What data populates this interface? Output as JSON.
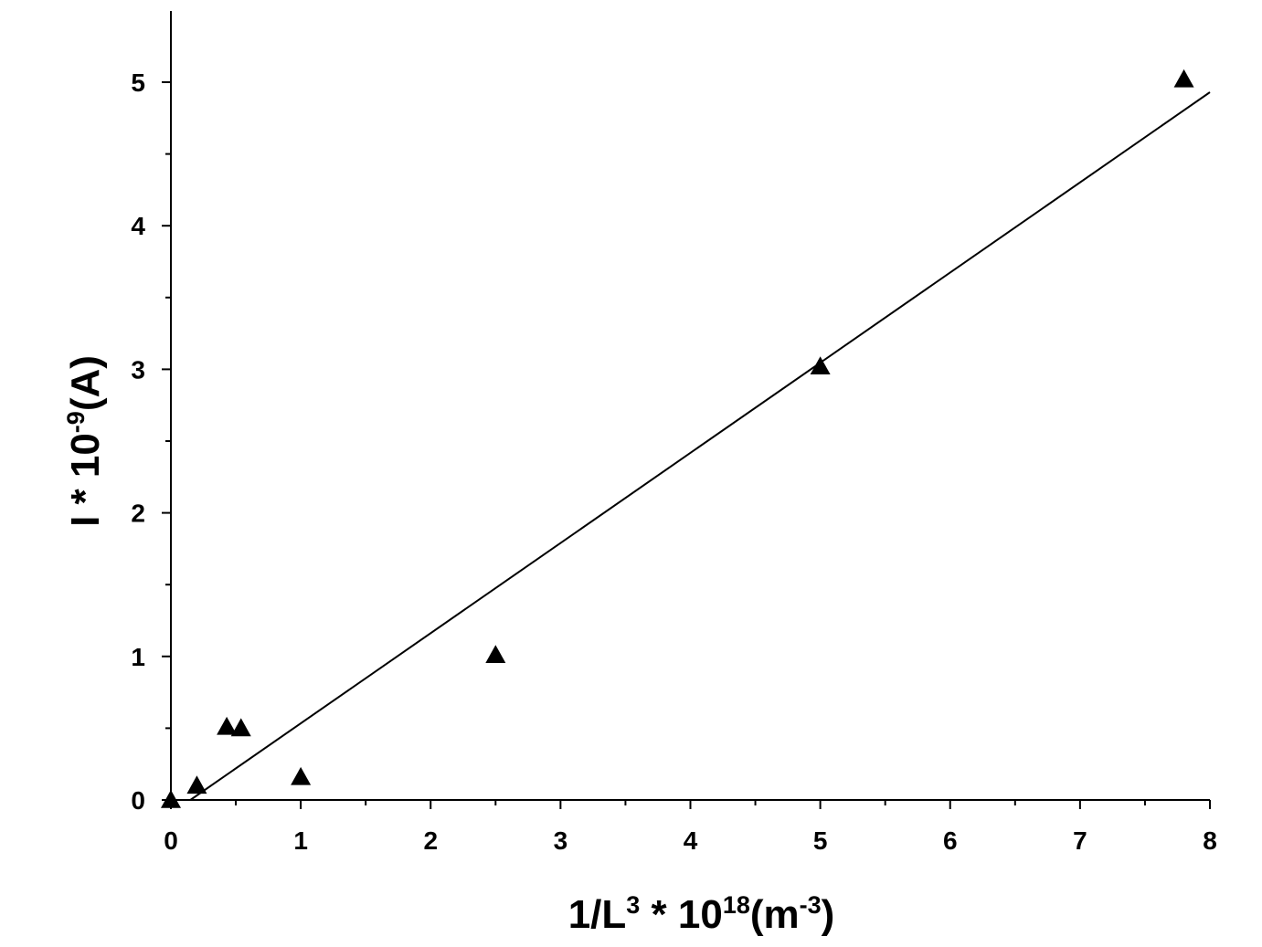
{
  "chart_data": {
    "type": "scatter",
    "title": "",
    "xlabel": {
      "parts": [
        {
          "text": "1/L",
          "sup": false
        },
        {
          "text": "3",
          "sup": true
        },
        {
          "text": " * 10",
          "sup": false
        },
        {
          "text": "18",
          "sup": true
        },
        {
          "text": "(m",
          "sup": false
        },
        {
          "text": "-3",
          "sup": true
        },
        {
          "text": ")",
          "sup": false
        }
      ]
    },
    "ylabel": {
      "parts": [
        {
          "text": "I * 10",
          "sup": false
        },
        {
          "text": "-9",
          "sup": true
        },
        {
          "text": "(A)",
          "sup": false
        }
      ]
    },
    "xlim": [
      0,
      8
    ],
    "ylim": [
      0,
      5.5
    ],
    "x_ticks": [
      0,
      1,
      2,
      3,
      4,
      5,
      6,
      7,
      8
    ],
    "y_ticks": [
      0,
      1,
      2,
      3,
      4,
      5
    ],
    "x_tick_labels": [
      "0",
      "1",
      "2",
      "3",
      "4",
      "5",
      "6",
      "7",
      "8"
    ],
    "y_tick_labels": [
      "0",
      "1",
      "2",
      "3",
      "4",
      "5"
    ],
    "grid": false,
    "legend": "none",
    "marker": "filled-triangle",
    "color": "#000000",
    "series": [
      {
        "x": [
          0,
          0.2,
          0.43,
          0.54,
          1.0,
          2.5,
          5.0,
          7.8
        ],
        "y": [
          0.0,
          0.1,
          0.51,
          0.5,
          0.16,
          1.01,
          3.02,
          5.02
        ]
      }
    ],
    "fit_line": {
      "type": "linear",
      "x_start": 0.15,
      "x_end": 8.0,
      "y_start": 0.0,
      "y_end": 4.93
    }
  }
}
